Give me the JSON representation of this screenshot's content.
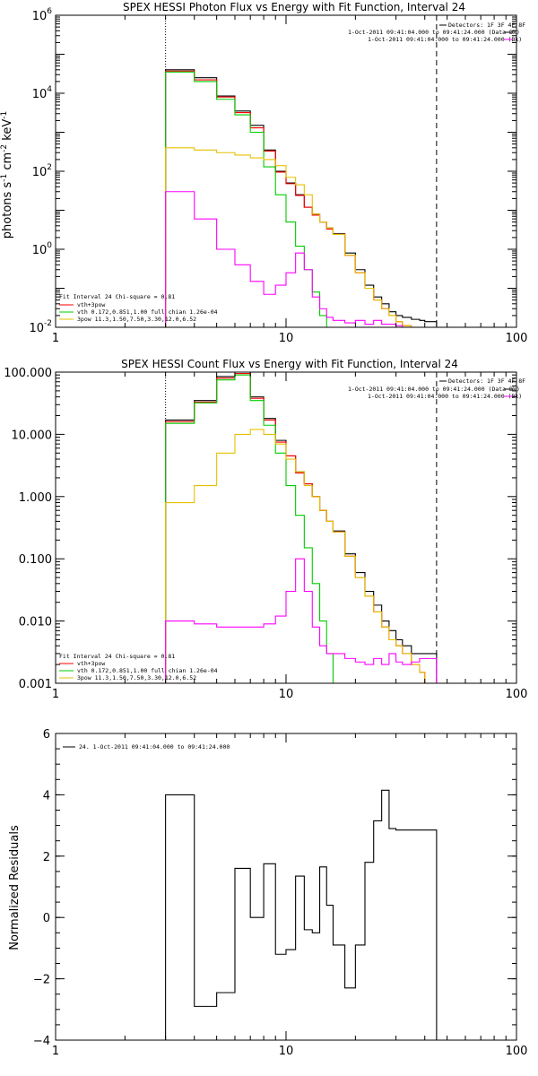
{
  "chart_data": [
    {
      "type": "line",
      "title": "SPEX HESSI Photon Flux vs Energy with Fit Function, Interval 24",
      "xlabel": "",
      "ylabel": "photons s^-1 cm^-2 keV^-1",
      "xscale": "log",
      "yscale": "log",
      "xlim": [
        1,
        100
      ],
      "ylim": [
        0.01,
        1000000
      ],
      "x_ticks": [
        "1",
        "10",
        "100"
      ],
      "y_ticks": [
        "10^-2",
        "10^0",
        "10^2",
        "10^4",
        "10^6"
      ],
      "energy_range_markers": [
        3,
        45
      ],
      "legend_top_right": {
        "header": "Detectors: 1F 3F 4F 8F",
        "entries": [
          {
            "label": "1-Oct-2011 09:41:04.000 to 09:41:24.000 (Data-Bk)",
            "color": "#000000"
          },
          {
            "label": "1-Oct-2011 09:41:04.000 to 09:41:24.000 (Bk)",
            "color": "#ff00ff"
          }
        ]
      },
      "legend_bottom_left": {
        "header": "Fit Interval 24   Chi-square = 0.81",
        "entries": [
          {
            "label": "vth+3pow",
            "color": "#ff0000"
          },
          {
            "label": "vth 0.172,0.851,1.00  full chian 1.26e-04",
            "color": "#00cc00"
          },
          {
            "label": "3pow 11.3,1.50,7.50,3.30,12.0,6.52",
            "color": "#e6c000"
          }
        ]
      },
      "bin_edges": [
        3,
        4,
        5,
        6,
        7,
        8,
        9,
        10,
        11,
        12,
        13,
        14,
        15,
        16,
        18,
        20,
        22,
        24,
        26,
        28,
        30,
        32,
        35,
        38,
        40,
        45
      ],
      "series": [
        {
          "name": "Data-Bk",
          "color": "#000000",
          "values": [
            40000,
            25000,
            8500,
            3500,
            1500,
            350,
            100,
            50,
            25,
            12,
            8,
            5,
            3.5,
            2.5,
            0.8,
            0.3,
            0.12,
            0.06,
            0.04,
            0.025,
            0.02,
            0.018,
            0.016,
            0.015,
            0.014
          ]
        },
        {
          "name": "vth+3pow",
          "color": "#ff0000",
          "values": [
            37000,
            22000,
            8000,
            3200,
            1300,
            330,
            95,
            48,
            24,
            12,
            7.5,
            5,
            3.3,
            2.4,
            0.7,
            0.25,
            0.1,
            0.05,
            0.03,
            0.02,
            0.014,
            0.011,
            0.01,
            0.01,
            0.01
          ]
        },
        {
          "name": "vth",
          "color": "#00cc00",
          "values": [
            35000,
            20000,
            7000,
            2800,
            1000,
            130,
            25,
            5,
            1.2,
            0.3,
            0.08,
            0.02,
            0.01,
            0.01,
            0.01,
            0.01,
            0.01,
            0.01,
            0.01,
            0.01,
            0.01,
            0.01,
            0.01,
            0.01,
            0.01
          ]
        },
        {
          "name": "3pow",
          "color": "#e6c000",
          "values": [
            400,
            350,
            300,
            260,
            220,
            200,
            140,
            70,
            45,
            25,
            8,
            5,
            3.5,
            2.4,
            0.7,
            0.25,
            0.1,
            0.05,
            0.03,
            0.02,
            0.014,
            0.011,
            0.01,
            0.01,
            0.01
          ]
        },
        {
          "name": "Bk",
          "color": "#ff00ff",
          "values": [
            30,
            6,
            1,
            0.4,
            0.15,
            0.07,
            0.12,
            0.25,
            0.8,
            0.3,
            0.06,
            0.03,
            0.018,
            0.015,
            0.013,
            0.015,
            0.012,
            0.015,
            0.012,
            0.012,
            0.011,
            0.01,
            0.01,
            0.01,
            0.01
          ]
        }
      ]
    },
    {
      "type": "line",
      "title": "SPEX HESSI Count Flux vs Energy with Fit Function, Interval 24",
      "xlabel": "",
      "ylabel": "",
      "xscale": "log",
      "yscale": "log",
      "xlim": [
        1,
        100
      ],
      "ylim": [
        0.001,
        100
      ],
      "x_ticks": [
        "1",
        "10",
        "100"
      ],
      "y_ticks": [
        "0.001",
        "0.010",
        "0.100",
        "1.000",
        "10.000",
        "100.000"
      ],
      "energy_range_markers": [
        3,
        45
      ],
      "legend_top_right": {
        "header": "Detectors: 1F 3F 4F 8F",
        "entries": [
          {
            "label": "1-Oct-2011 09:41:04.000 to 09:41:24.000 (Data-Bk)",
            "color": "#000000"
          },
          {
            "label": "1-Oct-2011 09:41:04.000 to 09:41:24.000 (Bk)",
            "color": "#ff00ff"
          }
        ]
      },
      "legend_bottom_left": {
        "header": "Fit Interval 24   Chi-square = 0.81",
        "entries": [
          {
            "label": "vth+3pow",
            "color": "#ff0000"
          },
          {
            "label": "vth 0.172,0.851,1.00  full chian 1.26e-04",
            "color": "#00cc00"
          },
          {
            "label": "3pow 11.3,1.50,7.50,3.30,12.0,6.52",
            "color": "#e6c000"
          }
        ]
      },
      "bin_edges": [
        3,
        4,
        5,
        6,
        7,
        8,
        9,
        10,
        11,
        12,
        13,
        14,
        15,
        16,
        18,
        20,
        22,
        24,
        26,
        28,
        30,
        32,
        35,
        38,
        40,
        45
      ],
      "series": [
        {
          "name": "Data-Bk",
          "color": "#000000",
          "values": [
            17,
            35,
            85,
            100,
            40,
            18,
            8,
            4.5,
            2.5,
            1.6,
            1.0,
            0.6,
            0.4,
            0.28,
            0.12,
            0.06,
            0.03,
            0.018,
            0.01,
            0.007,
            0.005,
            0.004,
            0.003,
            0.003,
            0.003
          ]
        },
        {
          "name": "vth+3pow",
          "color": "#ff0000",
          "values": [
            16,
            33,
            80,
            95,
            38,
            17,
            7.5,
            4.5,
            2.4,
            1.6,
            1.0,
            0.6,
            0.4,
            0.27,
            0.11,
            0.05,
            0.025,
            0.014,
            0.008,
            0.005,
            0.004,
            0.003,
            0.002,
            0.0015,
            0.001
          ]
        },
        {
          "name": "vth",
          "color": "#00cc00",
          "values": [
            15,
            32,
            75,
            90,
            35,
            14,
            5,
            1.5,
            0.5,
            0.15,
            0.04,
            0.01,
            0.003,
            0.001,
            0.001,
            0.001,
            0.001,
            0.001,
            0.001,
            0.001,
            0.001,
            0.001,
            0.001,
            0.001,
            0.001
          ]
        },
        {
          "name": "3pow",
          "color": "#e6c000",
          "values": [
            0.8,
            1.5,
            5,
            10,
            12,
            10,
            7,
            4,
            2.5,
            1.5,
            1.0,
            0.6,
            0.4,
            0.27,
            0.11,
            0.05,
            0.025,
            0.014,
            0.008,
            0.005,
            0.004,
            0.003,
            0.002,
            0.0015,
            0.001
          ]
        },
        {
          "name": "Bk",
          "color": "#ff00ff",
          "values": [
            0.01,
            0.009,
            0.008,
            0.008,
            0.008,
            0.009,
            0.012,
            0.03,
            0.1,
            0.03,
            0.008,
            0.004,
            0.003,
            0.003,
            0.0025,
            0.0022,
            0.002,
            0.0025,
            0.002,
            0.003,
            0.0022,
            0.002,
            0.0022,
            0.0025,
            0.0025
          ]
        }
      ]
    },
    {
      "type": "line",
      "title": "",
      "xlabel": "",
      "ylabel": "Normalized Residuals",
      "xscale": "log",
      "yscale": "linear",
      "xlim": [
        1,
        100
      ],
      "ylim": [
        -4,
        6
      ],
      "x_ticks": [
        "1",
        "10",
        "100"
      ],
      "y_ticks": [
        "-4",
        "-2",
        "0",
        "2",
        "4",
        "6"
      ],
      "legend": {
        "entries": [
          {
            "label": "24.  1-Oct-2011 09:41:04.000 to 09:41:24.000",
            "color": "#000000"
          }
        ]
      },
      "bin_edges": [
        3,
        4,
        5,
        6,
        7,
        8,
        9,
        10,
        11,
        12,
        13,
        14,
        15,
        16,
        18,
        20,
        22,
        24,
        26,
        28,
        30,
        32,
        35,
        38,
        40,
        45
      ],
      "series": [
        {
          "name": "24.  1-Oct-2011 09:41:04.000 to 09:41:24.000",
          "color": "#000000",
          "values": [
            4.0,
            -2.9,
            -2.45,
            1.6,
            0.0,
            1.75,
            -1.2,
            -1.05,
            1.35,
            -0.4,
            -0.5,
            1.65,
            0.4,
            -0.9,
            -2.3,
            -0.9,
            1.8,
            3.15,
            4.15,
            2.9,
            2.85,
            2.85,
            2.85,
            2.85,
            2.85
          ]
        }
      ]
    }
  ]
}
